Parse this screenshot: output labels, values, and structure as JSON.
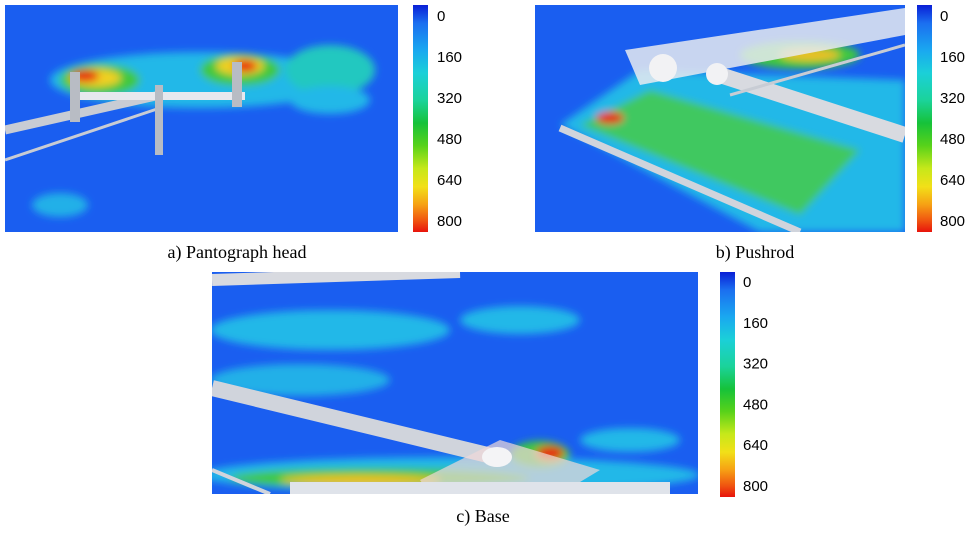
{
  "panels": [
    {
      "caption": "a) Pantograph head",
      "colorbar": {
        "ticks": [
          0,
          160,
          320,
          480,
          640,
          800
        ]
      }
    },
    {
      "caption": "b) Pushrod",
      "colorbar": {
        "ticks": [
          0,
          160,
          320,
          480,
          640,
          800
        ]
      }
    },
    {
      "caption": "c) Base",
      "colorbar": {
        "ticks": [
          0,
          160,
          320,
          480,
          640,
          800
        ]
      }
    }
  ]
}
